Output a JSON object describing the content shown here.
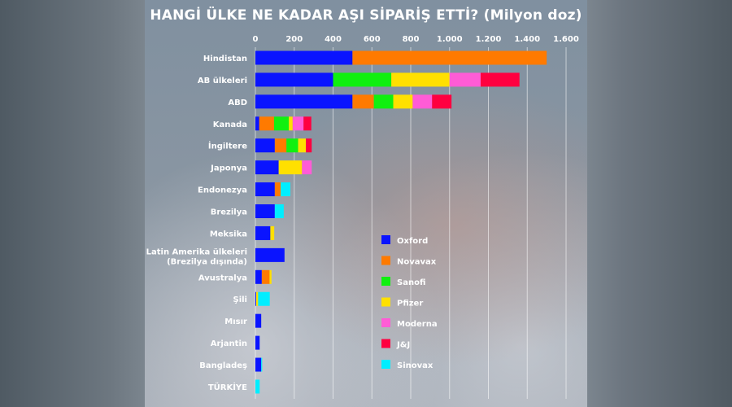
{
  "chart_data": {
    "type": "bar",
    "orientation": "horizontal",
    "stacked": true,
    "title": "HANGİ ÜLKE NE KADAR AŞI SİPARİŞ ETTİ? (Milyon doz)",
    "xlim": [
      0,
      1600
    ],
    "x_ticks": [
      "0",
      "200",
      "400",
      "600",
      "800",
      "1.000",
      "1.200",
      "1.400",
      "1.600"
    ],
    "x_tick_values": [
      0,
      200,
      400,
      600,
      800,
      1000,
      1200,
      1400,
      1600
    ],
    "grid": true,
    "legend_placement": "right",
    "categories": [
      "Hindistan",
      "AB ülkeleri",
      "ABD",
      "Kanada",
      "İngiltere",
      "Japonya",
      "Endonezya",
      "Brezilya",
      "Meksika",
      "Latin Amerika ülkeleri (Brezilya dışında)",
      "Avustralya",
      "Şili",
      "Mısır",
      "Arjantin",
      "Bangladeş",
      "TÜRKİYE"
    ],
    "series": [
      {
        "name": "Oxford",
        "color": "#0a14ff",
        "values": [
          500,
          400,
          500,
          20,
          100,
          120,
          100,
          100,
          77,
          150,
          33,
          4,
          30,
          22,
          30,
          0
        ]
      },
      {
        "name": "Novavax",
        "color": "#ff7a00",
        "values": [
          1000,
          0,
          110,
          76,
          60,
          0,
          30,
          0,
          0,
          0,
          40,
          0,
          0,
          0,
          0,
          0
        ]
      },
      {
        "name": "Sanofi",
        "color": "#10f010",
        "values": [
          0,
          300,
          100,
          76,
          60,
          0,
          0,
          0,
          0,
          0,
          0,
          0,
          0,
          0,
          0,
          0
        ]
      },
      {
        "name": "Pfizer",
        "color": "#ffe000",
        "values": [
          0,
          300,
          100,
          20,
          40,
          120,
          0,
          0,
          20,
          0,
          10,
          10,
          0,
          0,
          0,
          0
        ]
      },
      {
        "name": "Moderna",
        "color": "#ff5cd6",
        "values": [
          0,
          160,
          100,
          56,
          0,
          50,
          0,
          0,
          0,
          0,
          0,
          0,
          0,
          0,
          0,
          0
        ]
      },
      {
        "name": "J&J",
        "color": "#ff0040",
        "values": [
          0,
          200,
          100,
          40,
          30,
          0,
          0,
          0,
          0,
          0,
          0,
          0,
          0,
          0,
          0,
          0
        ]
      },
      {
        "name": "Sinovax",
        "color": "#00eeff",
        "values": [
          0,
          0,
          0,
          0,
          0,
          0,
          50,
          46,
          0,
          0,
          0,
          60,
          0,
          0,
          5,
          22
        ]
      }
    ]
  }
}
